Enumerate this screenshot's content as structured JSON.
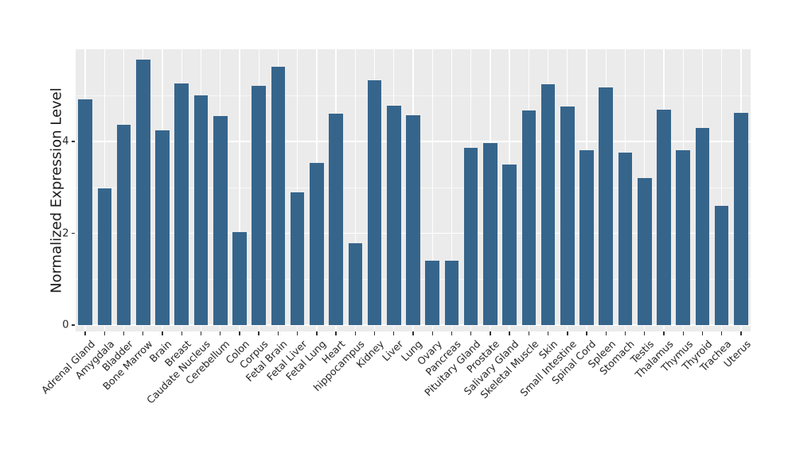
{
  "chart_data": {
    "type": "bar",
    "title": "",
    "xlabel": "",
    "ylabel": "Normalized Expression Level",
    "categories": [
      "Adrenal Gland",
      "Amygdala",
      "Bladder",
      "Bone Marrow",
      "Brain",
      "Breast",
      "Caudate Nucleus",
      "Cerebellum",
      "Colon",
      "Corpus",
      "Fetal Brain",
      "Fetal Liver",
      "Fetal Lung",
      "Heart",
      "hippocampus",
      "Kidney",
      "Liver",
      "Lung",
      "Ovary",
      "Pancreas",
      "Pituitary Gland",
      "Prostate",
      "Salivary Gland",
      "Skeletal Muscle",
      "Skin",
      "Small Intestine",
      "Spinal Cord",
      "Spleen",
      "Stomach",
      "Testis",
      "Thalamus",
      "Thymus",
      "Thyroid",
      "Trachea",
      "Uterus"
    ],
    "values": [
      4.92,
      2.97,
      4.36,
      5.78,
      4.24,
      5.27,
      5.0,
      4.56,
      2.03,
      5.22,
      5.62,
      2.9,
      3.53,
      4.6,
      1.78,
      5.33,
      4.78,
      4.58,
      1.4,
      1.4,
      3.86,
      3.97,
      3.5,
      4.68,
      5.24,
      4.76,
      3.81,
      5.17,
      3.75,
      3.21,
      4.7,
      3.81,
      4.3,
      2.59,
      4.62
    ],
    "yticks": [
      0,
      2,
      4
    ],
    "minor_yticks": [
      1,
      3,
      5
    ],
    "ylim": [
      -0.14,
      6.0
    ],
    "grid": "on",
    "legend": "none",
    "bar_color": "#36658c",
    "panel_bg": "#ebebeb",
    "grid_color": "#ffffff",
    "tick_color": "#333333",
    "text_color": "#262626"
  }
}
